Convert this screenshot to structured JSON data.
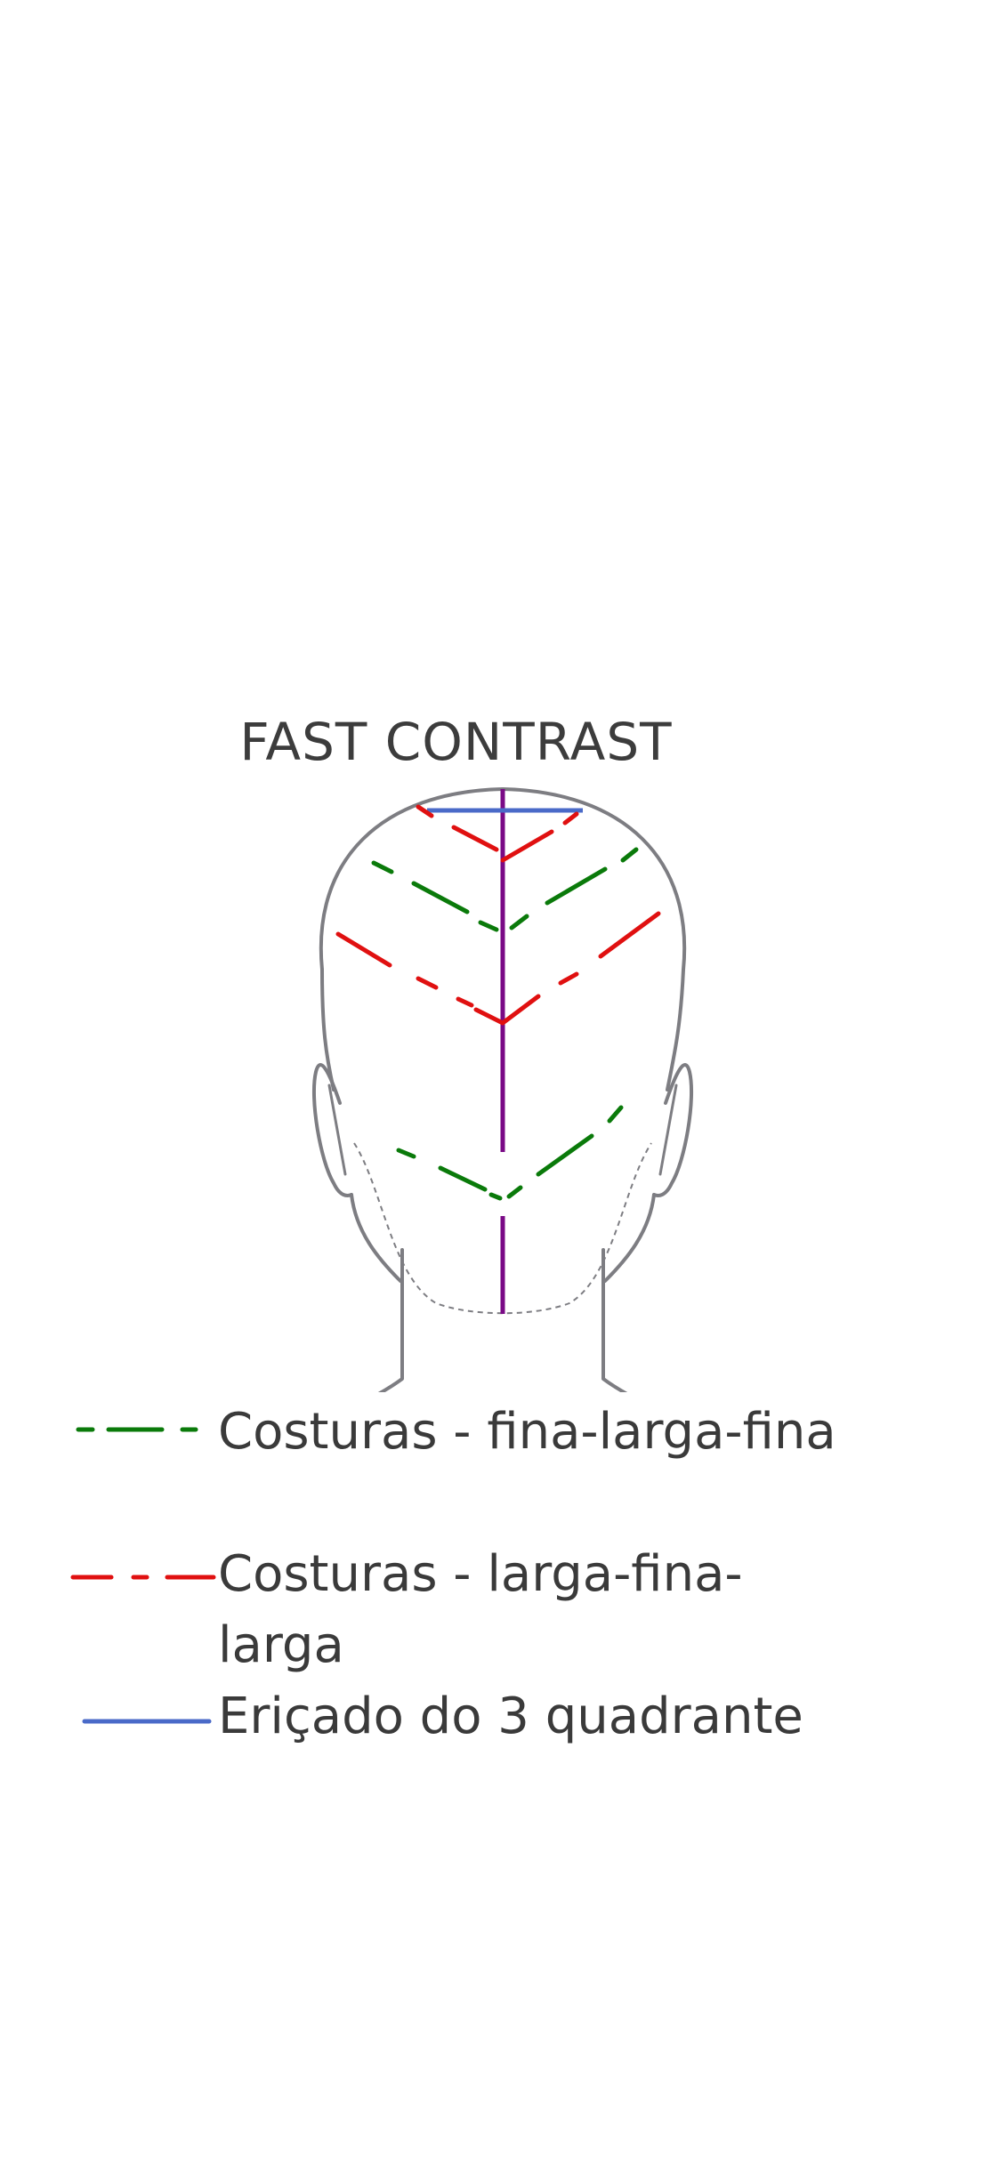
{
  "title": "FAST CONTRAST",
  "colors": {
    "outline": "#7d7d82",
    "green": "#0a7a0a",
    "red": "#e01010",
    "blue": "#4a6ac8",
    "purple": "#7a0a86"
  },
  "legend": [
    {
      "label": "Costuras - fina-larga-fina",
      "color": "#0a7a0a",
      "style": "dashed-fine-wide-fine"
    },
    {
      "label": "Costuras - larga-fina-larga",
      "color": "#e01010",
      "style": "dashed-wide-fine-wide"
    },
    {
      "label": "Eriçado do 3 quadrante",
      "color": "#4a6ac8",
      "style": "solid"
    }
  ]
}
